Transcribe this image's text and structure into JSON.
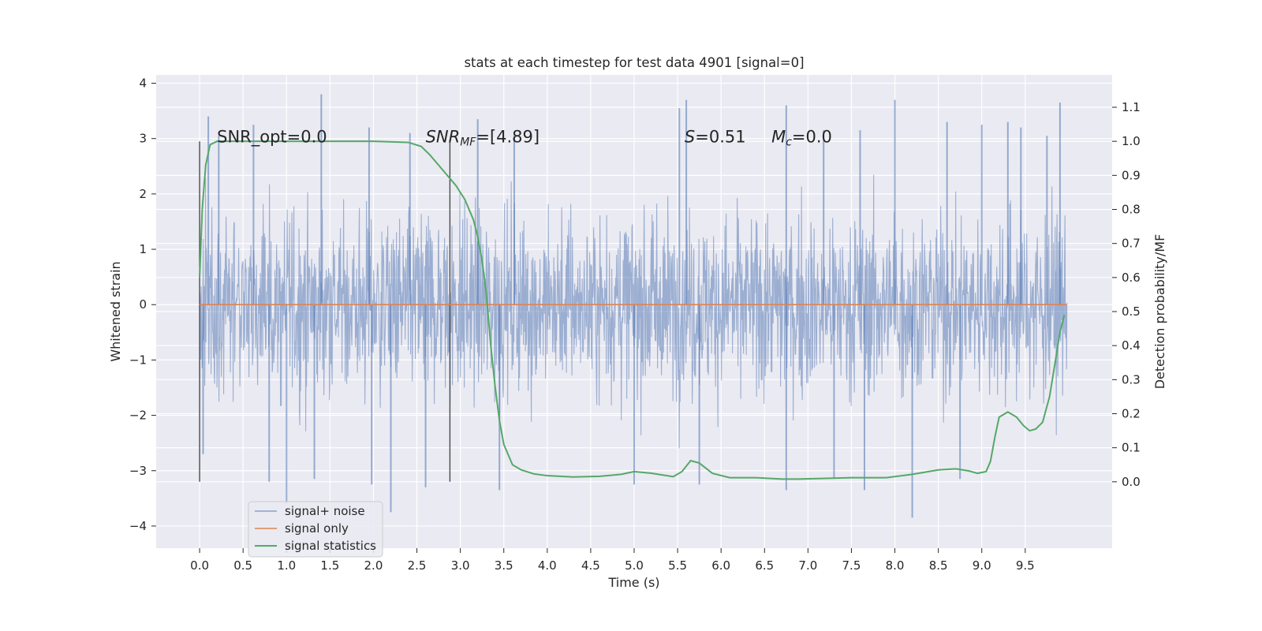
{
  "chart_data": {
    "type": "line",
    "title": "stats at each timestep for test data 4901 [signal=0]",
    "xlabel": "Time (s)",
    "ylabel": "Whitened strain",
    "y2label": "Detection probability/MF",
    "xlim": [
      -0.5,
      10.5
    ],
    "ylim": [
      -4.4,
      4.15
    ],
    "y2lim": [
      -0.195,
      1.195
    ],
    "xticks": [
      "0.0",
      "0.5",
      "1.0",
      "1.5",
      "2.0",
      "2.5",
      "3.0",
      "3.5",
      "4.0",
      "4.5",
      "5.0",
      "5.5",
      "6.0",
      "6.5",
      "7.0",
      "7.5",
      "8.0",
      "8.5",
      "9.0",
      "9.5"
    ],
    "yticks": [
      "4",
      "3",
      "2",
      "1",
      "0",
      "−1",
      "−2",
      "−3",
      "−4"
    ],
    "y2ticks": [
      "1.1",
      "1.0",
      "0.9",
      "0.8",
      "0.7",
      "0.6",
      "0.5",
      "0.4",
      "0.3",
      "0.2",
      "0.1",
      "0.0"
    ],
    "grid": true,
    "legend_position": "lower-left",
    "annotations": {
      "snr_opt": "SNR_opt=0.0",
      "snr_mf_sym": "SNR",
      "snr_mf_sub": "MF",
      "snr_mf_val": "=[4.89]",
      "s_sym": "S",
      "s_val": "=0.51",
      "mc_sym": "M",
      "mc_sub": "c",
      "mc_val": "=0.0"
    },
    "vertical_markers": [
      0.0,
      2.88
    ],
    "vertical_marker_range": [
      -3.2,
      2.95
    ],
    "series": [
      {
        "name": "signal+ noise",
        "color": "#4c72b0",
        "kind": "noise",
        "time_range": [
          0.0,
          9.98
        ],
        "typical_range": [
          -1.3,
          1.3
        ],
        "extremes_max": [
          [
            0.1,
            3.4
          ],
          [
            0.22,
            3.05
          ],
          [
            0.62,
            3.25
          ],
          [
            1.4,
            3.8
          ],
          [
            1.95,
            3.2
          ],
          [
            2.42,
            3.1
          ],
          [
            3.2,
            3.35
          ],
          [
            3.62,
            3.1
          ],
          [
            5.52,
            3.55
          ],
          [
            5.6,
            3.7
          ],
          [
            6.75,
            3.6
          ],
          [
            7.18,
            3.15
          ],
          [
            7.6,
            3.15
          ],
          [
            8.0,
            3.7
          ],
          [
            8.6,
            3.3
          ],
          [
            9.0,
            3.25
          ],
          [
            9.3,
            3.3
          ],
          [
            9.45,
            3.2
          ],
          [
            9.75,
            3.05
          ],
          [
            9.9,
            3.65
          ]
        ],
        "extremes_min": [
          [
            0.04,
            -2.7
          ],
          [
            0.8,
            -3.2
          ],
          [
            1.0,
            -3.6
          ],
          [
            1.32,
            -3.15
          ],
          [
            1.98,
            -3.25
          ],
          [
            2.2,
            -3.75
          ],
          [
            2.6,
            -3.3
          ],
          [
            3.45,
            -3.35
          ],
          [
            5.0,
            -3.25
          ],
          [
            5.75,
            -3.25
          ],
          [
            6.75,
            -3.35
          ],
          [
            7.3,
            -3.15
          ],
          [
            7.65,
            -3.35
          ],
          [
            8.2,
            -3.85
          ],
          [
            8.75,
            -3.15
          ]
        ]
      },
      {
        "name": "signal only",
        "color": "#dd8452",
        "x": [
          0.0,
          9.98
        ],
        "y": [
          0.0,
          0.0
        ]
      },
      {
        "name": "signal statistics",
        "color": "#55a868",
        "axis": "right",
        "x": [
          0.0,
          0.03,
          0.07,
          0.12,
          0.2,
          0.5,
          1.0,
          2.0,
          2.4,
          2.55,
          2.65,
          2.75,
          2.85,
          2.95,
          3.05,
          3.15,
          3.2,
          3.25,
          3.3,
          3.35,
          3.4,
          3.45,
          3.5,
          3.6,
          3.7,
          3.85,
          4.0,
          4.3,
          4.6,
          4.85,
          5.0,
          5.2,
          5.45,
          5.55,
          5.65,
          5.75,
          5.9,
          6.1,
          6.4,
          6.7,
          6.9,
          7.2,
          7.5,
          7.9,
          8.2,
          8.5,
          8.7,
          8.85,
          8.95,
          9.05,
          9.1,
          9.15,
          9.2,
          9.3,
          9.4,
          9.48,
          9.55,
          9.62,
          9.7,
          9.78,
          9.85,
          9.9,
          9.95
        ],
        "y": [
          0.6,
          0.8,
          0.93,
          0.99,
          1.0,
          1.0,
          1.0,
          1.0,
          0.997,
          0.985,
          0.96,
          0.93,
          0.9,
          0.87,
          0.83,
          0.77,
          0.72,
          0.65,
          0.55,
          0.4,
          0.28,
          0.18,
          0.11,
          0.05,
          0.035,
          0.023,
          0.018,
          0.014,
          0.016,
          0.022,
          0.03,
          0.025,
          0.015,
          0.03,
          0.062,
          0.055,
          0.025,
          0.012,
          0.012,
          0.008,
          0.008,
          0.01,
          0.012,
          0.012,
          0.022,
          0.035,
          0.038,
          0.032,
          0.025,
          0.03,
          0.06,
          0.13,
          0.19,
          0.205,
          0.19,
          0.165,
          0.15,
          0.155,
          0.175,
          0.25,
          0.36,
          0.44,
          0.49
        ]
      }
    ]
  }
}
